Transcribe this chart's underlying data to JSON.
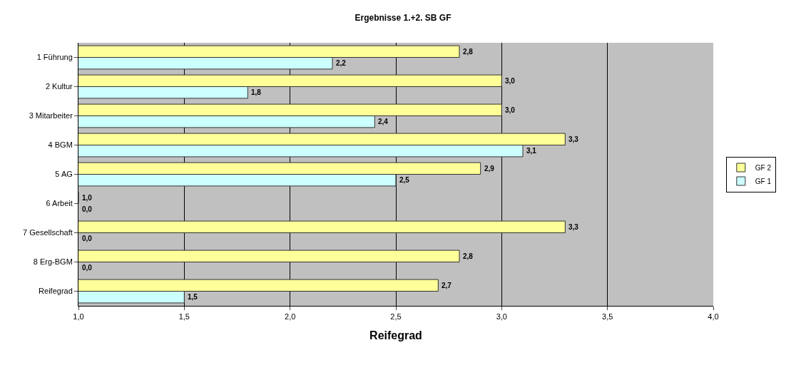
{
  "chart_data": {
    "type": "bar",
    "orientation": "horizontal",
    "title": "Ergebnisse 1.+2. SB GF",
    "xlabel": "Reifegrad",
    "categories": [
      "1 Führung",
      "2 Kultur",
      "3 Mitarbeiter",
      "4 BGM",
      "5 AG",
      "6 Arbeit",
      "7 Gesellschaft",
      "8 Erg-BGM",
      "Reifegrad"
    ],
    "series": [
      {
        "name": "GF 2",
        "color": "#ffff99",
        "values": [
          2.8,
          3.0,
          3.0,
          3.3,
          2.9,
          1.0,
          3.3,
          2.8,
          2.7
        ],
        "value_labels": [
          "2,8",
          "3,0",
          "3,0",
          "3,3",
          "2,9",
          "1,0",
          "3,3",
          "2,8",
          "2,7"
        ]
      },
      {
        "name": "GF 1",
        "color": "#ccffff",
        "values": [
          2.2,
          1.8,
          2.4,
          3.1,
          2.5,
          null,
          null,
          null,
          1.5
        ],
        "value_labels": [
          "2,2",
          "1,8",
          "2,4",
          "3,1",
          "2,5",
          "0,0",
          "0,0",
          "0,0",
          "1,5"
        ]
      }
    ],
    "xlim": [
      1.0,
      4.0
    ],
    "xticks": [
      {
        "value": 1.0,
        "label": "1,0"
      },
      {
        "value": 1.5,
        "label": "1,5"
      },
      {
        "value": 2.0,
        "label": "2,0"
      },
      {
        "value": 2.5,
        "label": "2,5"
      },
      {
        "value": 3.0,
        "label": "3,0"
      },
      {
        "value": 3.5,
        "label": "3,5"
      },
      {
        "value": 4.0,
        "label": "4,0"
      }
    ],
    "grid": "x",
    "legend": "right"
  }
}
